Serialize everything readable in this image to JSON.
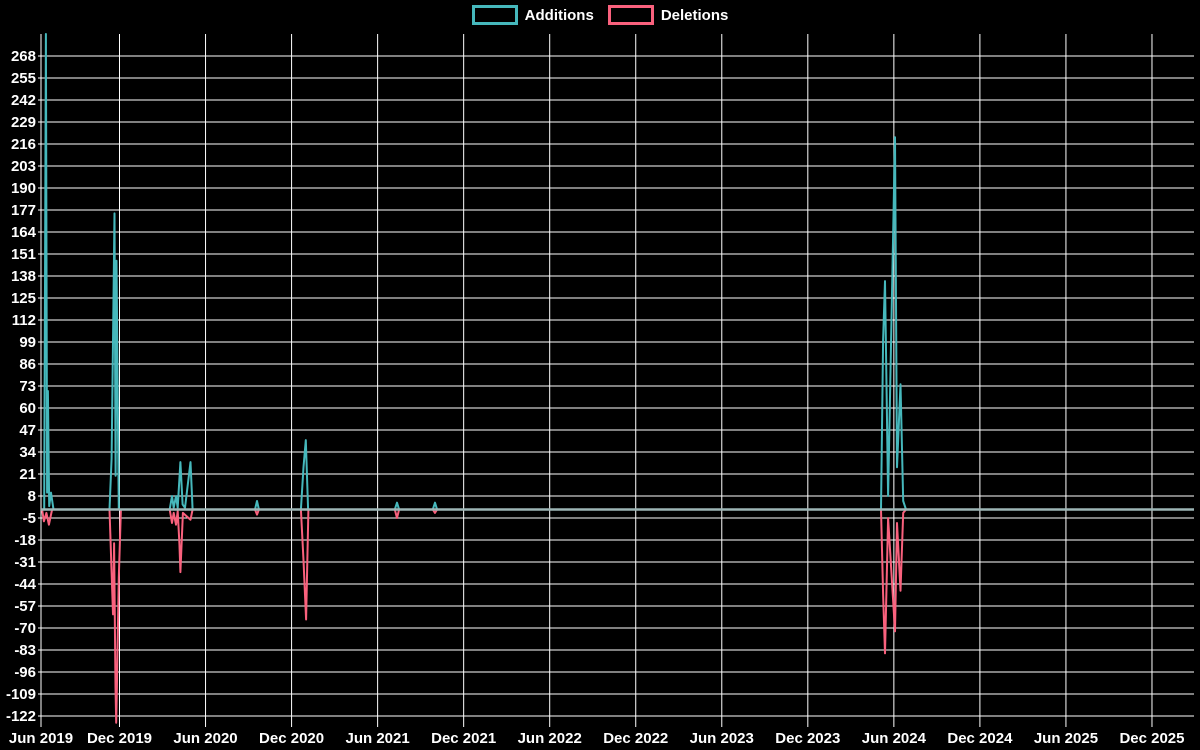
{
  "legend": {
    "position": "top",
    "items": [
      {
        "label": "Additions",
        "color": "#46b8bc"
      },
      {
        "label": "Deletions",
        "color": "#f9617d"
      }
    ]
  },
  "chart_data": {
    "type": "line",
    "title": "",
    "xlabel": "",
    "ylabel": "",
    "background_color": "#000000",
    "grid_color": "#ffffff",
    "text_color": "#ffffff",
    "baseline": {
      "value": 0,
      "color": "#9db6b6"
    },
    "x_axis": {
      "unit": "months since Jun 2019",
      "tick_months": [
        0,
        6,
        12,
        18,
        24,
        30,
        36,
        42,
        48,
        54,
        60,
        66,
        72,
        78
      ],
      "tick_labels": [
        "Jun 2019",
        "Dec 2019",
        "Jun 2020",
        "Dec 2020",
        "Jun 2021",
        "Dec 2021",
        "Jun 2022",
        "Dec 2022",
        "Jun 2023",
        "Dec 2023",
        "Jun 2024",
        "Dec 2024",
        "Jun 2025",
        "Dec 2025"
      ],
      "range_months": [
        0.53,
        80.9
      ]
    },
    "y_axis": {
      "ticks": [
        268,
        255,
        242,
        229,
        216,
        203,
        190,
        177,
        164,
        151,
        138,
        125,
        112,
        99,
        86,
        73,
        60,
        47,
        34,
        21,
        8,
        -5,
        -18,
        -31,
        -44,
        -57,
        -70,
        -83,
        -96,
        -109,
        -122
      ],
      "min": -126,
      "max": 281
    },
    "series": [
      {
        "name": "Additions",
        "color": "#46b8bc",
        "points": [
          [
            0.53,
            0
          ],
          [
            0.75,
            0
          ],
          [
            0.87,
            281
          ],
          [
            0.95,
            10
          ],
          [
            1.01,
            70
          ],
          [
            1.1,
            2
          ],
          [
            1.22,
            10
          ],
          [
            1.4,
            0
          ],
          [
            5.3,
            0
          ],
          [
            5.45,
            30
          ],
          [
            5.55,
            99
          ],
          [
            5.65,
            175
          ],
          [
            5.73,
            20
          ],
          [
            5.79,
            147
          ],
          [
            5.95,
            0
          ],
          [
            9.5,
            0
          ],
          [
            9.66,
            8
          ],
          [
            9.78,
            1
          ],
          [
            9.94,
            8
          ],
          [
            10.06,
            1
          ],
          [
            10.25,
            28
          ],
          [
            10.4,
            3
          ],
          [
            10.57,
            1
          ],
          [
            10.95,
            28
          ],
          [
            11.1,
            0
          ],
          [
            15.45,
            0
          ],
          [
            15.59,
            5
          ],
          [
            15.72,
            0
          ],
          [
            18.65,
            0
          ],
          [
            18.83,
            25
          ],
          [
            18.99,
            41
          ],
          [
            19.15,
            0
          ],
          [
            25.2,
            0
          ],
          [
            25.35,
            4
          ],
          [
            25.5,
            0
          ],
          [
            27.85,
            0
          ],
          [
            28.0,
            4
          ],
          [
            28.15,
            0
          ],
          [
            59.1,
            0
          ],
          [
            59.25,
            100
          ],
          [
            59.38,
            135
          ],
          [
            59.6,
            8
          ],
          [
            60.08,
            220
          ],
          [
            60.22,
            25
          ],
          [
            60.46,
            74
          ],
          [
            60.65,
            5
          ],
          [
            60.85,
            0
          ],
          [
            80.9,
            0
          ]
        ]
      },
      {
        "name": "Deletions",
        "color": "#f9617d",
        "points": [
          [
            0.53,
            0
          ],
          [
            0.6,
            0
          ],
          [
            0.73,
            -7
          ],
          [
            0.9,
            -2
          ],
          [
            1.08,
            -9
          ],
          [
            1.3,
            0
          ],
          [
            5.3,
            0
          ],
          [
            5.55,
            -62
          ],
          [
            5.62,
            -20
          ],
          [
            5.72,
            -105
          ],
          [
            5.77,
            -126
          ],
          [
            5.82,
            -105
          ],
          [
            5.95,
            -40
          ],
          [
            6.1,
            0
          ],
          [
            9.5,
            0
          ],
          [
            9.66,
            -8
          ],
          [
            9.78,
            -2
          ],
          [
            9.94,
            -9
          ],
          [
            10.06,
            -1
          ],
          [
            10.18,
            -20
          ],
          [
            10.25,
            -37
          ],
          [
            10.42,
            -2
          ],
          [
            10.95,
            -6
          ],
          [
            11.1,
            0
          ],
          [
            15.45,
            0
          ],
          [
            15.59,
            -3
          ],
          [
            15.72,
            0
          ],
          [
            18.65,
            0
          ],
          [
            18.83,
            -30
          ],
          [
            19.01,
            -65
          ],
          [
            19.17,
            0
          ],
          [
            25.2,
            0
          ],
          [
            25.35,
            -5
          ],
          [
            25.5,
            0
          ],
          [
            27.85,
            0
          ],
          [
            28.0,
            -2
          ],
          [
            28.15,
            0
          ],
          [
            59.1,
            0
          ],
          [
            59.25,
            -50
          ],
          [
            59.38,
            -85
          ],
          [
            59.6,
            -5
          ],
          [
            60.08,
            -72
          ],
          [
            60.22,
            -8
          ],
          [
            60.46,
            -48
          ],
          [
            60.65,
            -2
          ],
          [
            60.85,
            0
          ],
          [
            80.9,
            0
          ]
        ]
      }
    ]
  }
}
